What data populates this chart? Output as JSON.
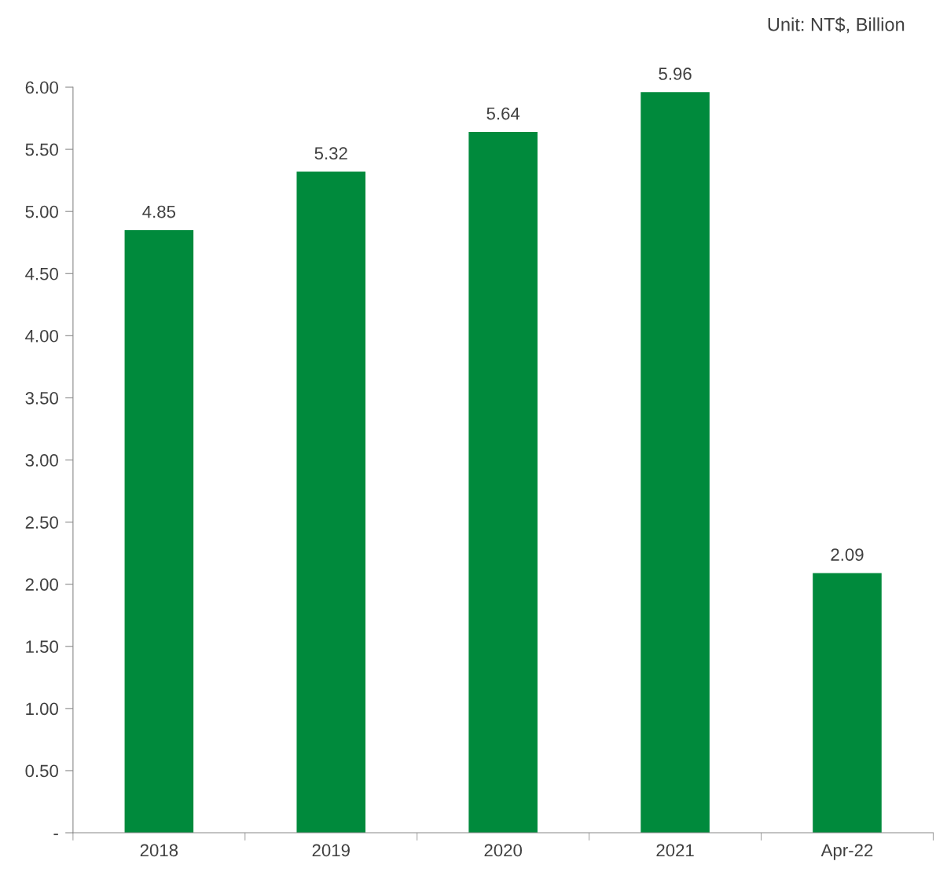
{
  "chart_data": {
    "type": "bar",
    "categories": [
      "2018",
      "2019",
      "2020",
      "2021",
      "Apr-22"
    ],
    "values": [
      4.85,
      5.32,
      5.64,
      5.96,
      2.09
    ],
    "color": "#008a3c",
    "ylim": [
      0,
      6
    ],
    "yticks": [
      {
        "value": 0,
        "label": "-"
      },
      {
        "value": 0.5,
        "label": "0.50"
      },
      {
        "value": 1,
        "label": "1.00"
      },
      {
        "value": 1.5,
        "label": "1.50"
      },
      {
        "value": 2,
        "label": "2.00"
      },
      {
        "value": 2.5,
        "label": "2.50"
      },
      {
        "value": 3,
        "label": "3.00"
      },
      {
        "value": 3.5,
        "label": "3.50"
      },
      {
        "value": 4,
        "label": "4.00"
      },
      {
        "value": 4.5,
        "label": "4.50"
      },
      {
        "value": 5,
        "label": "5.00"
      },
      {
        "value": 5.5,
        "label": "5.50"
      },
      {
        "value": 6,
        "label": "6.00"
      }
    ],
    "data_labels": true,
    "grid": false,
    "legend": false,
    "annotations": [
      "Unit: NT$, Billion"
    ]
  }
}
